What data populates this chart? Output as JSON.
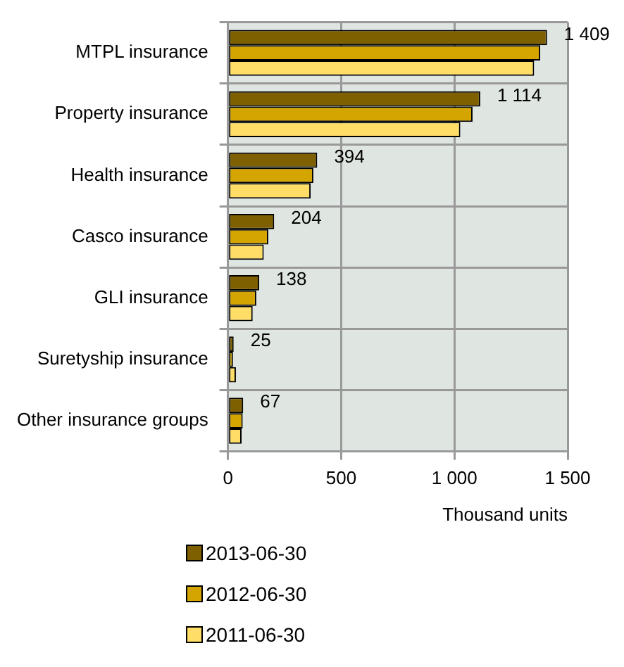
{
  "chart_data": {
    "type": "bar",
    "orientation": "horizontal",
    "xlabel": "Thousand units",
    "categories": [
      "MTPL insurance",
      "Property insurance",
      "Health insurance",
      "Casco insurance",
      "GLI insurance",
      "Suretyship insurance",
      "Other insurance groups"
    ],
    "series": [
      {
        "name": "2013-06-30",
        "color": "#7f6000",
        "values": [
          1409,
          1114,
          394,
          204,
          138,
          25,
          67
        ],
        "value_labels": [
          "1 409",
          "1 114",
          "394",
          "204",
          "138",
          "25",
          "67"
        ]
      },
      {
        "name": "2012-06-30",
        "color": "#d4a500",
        "values": [
          1379,
          1080,
          377,
          178,
          125,
          22,
          65
        ]
      },
      {
        "name": "2011-06-30",
        "color": "#ffdd66",
        "values": [
          1352,
          1026,
          365,
          158,
          109,
          35,
          60
        ]
      }
    ],
    "xlim": [
      0,
      1500
    ],
    "xticks": [
      0,
      {
        "value": 500,
        "label": "500"
      },
      {
        "value": 1000,
        "label": "1 000"
      },
      {
        "value": 1500,
        "label": "1 500"
      }
    ],
    "grid": true,
    "legend": "bottom left"
  }
}
